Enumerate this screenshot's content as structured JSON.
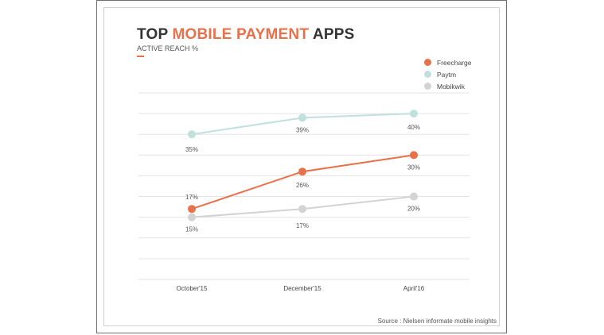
{
  "header": {
    "title_part1": "TOP ",
    "title_highlight": "MOBILE PAYMENT",
    "title_part2": " APPS",
    "subtitle": "ACTIVE REACH %"
  },
  "source": "Source : Nielsen informate mobile insights",
  "colors": {
    "accent": "#e8704a",
    "Freecharge": "#e8704a",
    "Paytm": "#bfe0dc",
    "Mobikwik": "#d3d3d3",
    "grid": "#e3e3e3"
  },
  "chart_data": {
    "type": "line",
    "title": "TOP MOBILE PAYMENT APPS",
    "subtitle": "ACTIVE REACH %",
    "categories": [
      "October'15",
      "December'15",
      "April'16"
    ],
    "series": [
      {
        "name": "Freecharge",
        "values": [
          17,
          26,
          30
        ],
        "labels": [
          "17%",
          "26%",
          "30%"
        ]
      },
      {
        "name": "Paytm",
        "values": [
          35,
          39,
          40
        ],
        "labels": [
          "35%",
          "39%",
          "40%"
        ]
      },
      {
        "name": "Mobikwik",
        "values": [
          15,
          17,
          20
        ],
        "labels": [
          "15%",
          "17%",
          "20%"
        ]
      }
    ],
    "ylim": [
      0,
      45
    ],
    "grid": true,
    "legend": "top-right"
  }
}
